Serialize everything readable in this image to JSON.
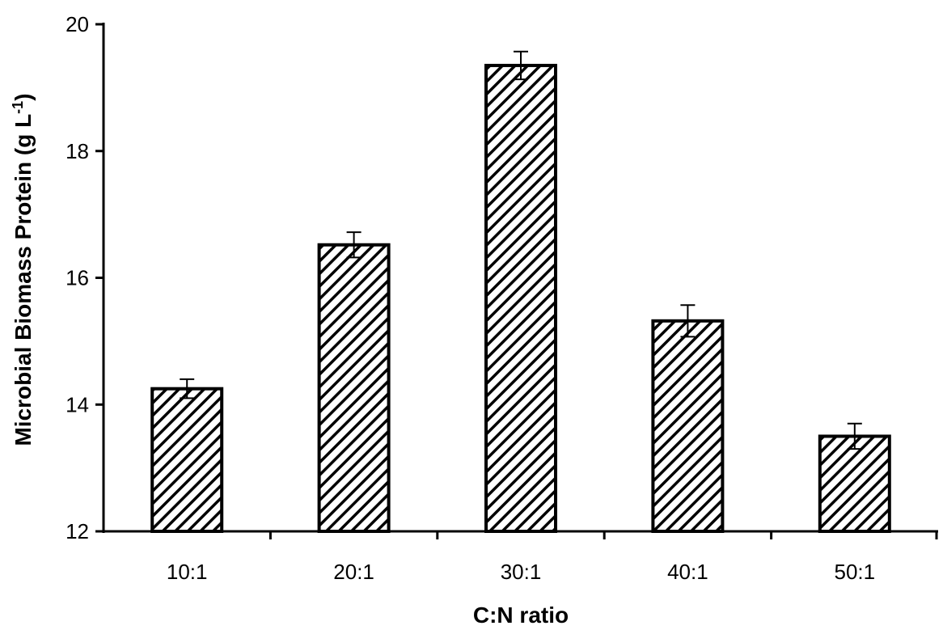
{
  "chart_data": {
    "type": "bar",
    "categories": [
      "10:1",
      "20:1",
      "30:1",
      "40:1",
      "50:1"
    ],
    "values": [
      14.25,
      16.52,
      19.35,
      15.32,
      13.5
    ],
    "error": [
      0.15,
      0.2,
      0.22,
      0.25,
      0.2
    ],
    "xlabel": "C:N ratio",
    "ylabel": {
      "main": "Microbial Biomass Protein (g L",
      "superscript": "-1",
      "close": ")"
    },
    "ylim": [
      12,
      20
    ],
    "yticks": [
      "12",
      "14",
      "16",
      "18",
      "20"
    ],
    "grid": false,
    "bar_fill": "diagonal-hatch",
    "colors": {
      "bar_stroke": "#000000",
      "hatch": "#000000",
      "background": "#ffffff"
    }
  }
}
